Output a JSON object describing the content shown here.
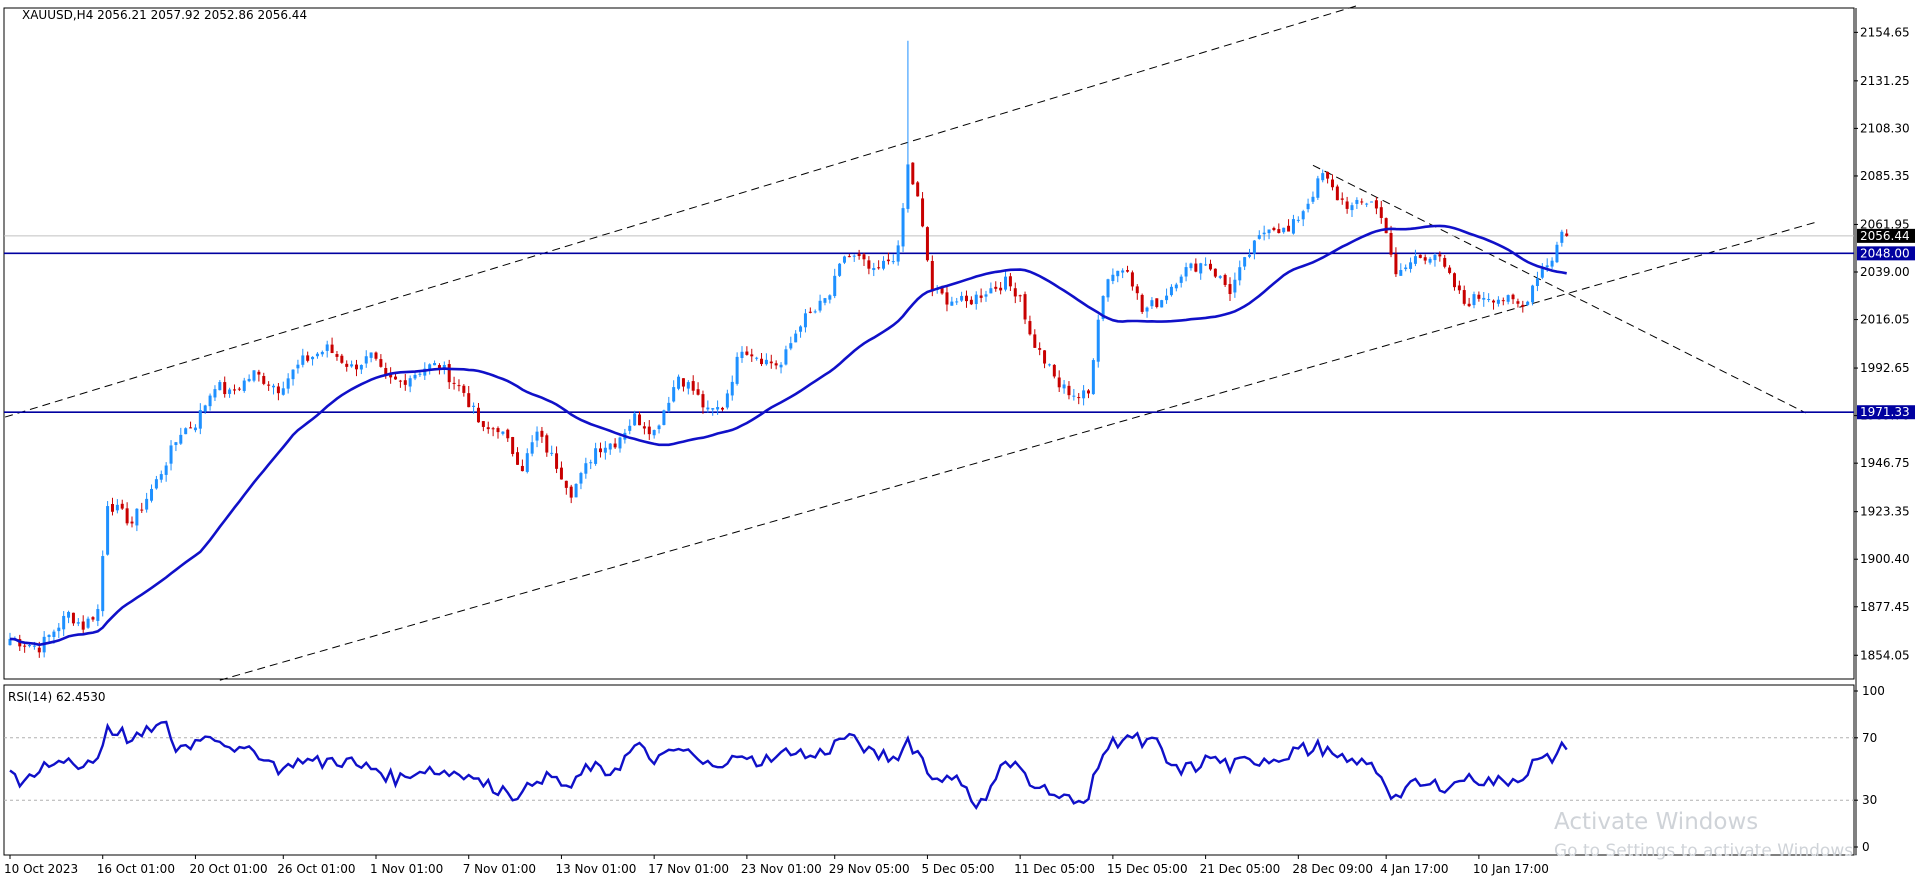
{
  "chart_data": {
    "type": "candlestick",
    "symbol_header": "XAUUSD,H4  2056.21 2057.92 2052.86 2056.44",
    "colors": {
      "up": "#1e90ff",
      "down": "#c80000",
      "ma": "#1010c8",
      "rsi": "#1010c8",
      "hline": "#0000a0"
    },
    "price_axis": {
      "ylim": [
        1842.6,
        2166.4
      ],
      "ticks": [
        "2154.65",
        "2131.25",
        "2108.30",
        "2085.35",
        "2061.95",
        "2039.00",
        "2016.05",
        "1992.65",
        "1969.70",
        "1946.75",
        "1923.35",
        "1900.40",
        "1877.45",
        "1854.05"
      ]
    },
    "x_labels": [
      "10 Oct 2023",
      "16 Oct 01:00",
      "20 Oct 01:00",
      "26 Oct 01:00",
      "1 Nov 01:00",
      "7 Nov 01:00",
      "13 Nov 01:00",
      "17 Nov 01:00",
      "23 Nov 01:00",
      "29 Nov 05:00",
      "5 Dec 05:00",
      "11 Dec 05:00",
      "15 Dec 05:00",
      "21 Dec 05:00",
      "28 Dec 09:00",
      "4 Jan 17:00",
      "10 Jan 17:00"
    ],
    "candles": {
      "count": 320,
      "anchors": [
        [
          0,
          1862
        ],
        [
          6,
          1858
        ],
        [
          12,
          1874
        ],
        [
          15,
          1868
        ],
        [
          18,
          1876
        ],
        [
          20,
          1928
        ],
        [
          25,
          1918
        ],
        [
          30,
          1938
        ],
        [
          35,
          1962
        ],
        [
          38,
          1966
        ],
        [
          42,
          1985
        ],
        [
          45,
          1980
        ],
        [
          50,
          1990
        ],
        [
          55,
          1983
        ],
        [
          60,
          1996
        ],
        [
          65,
          2002
        ],
        [
          70,
          1993
        ],
        [
          74,
          1998
        ],
        [
          77,
          1987
        ],
        [
          80,
          1986
        ],
        [
          85,
          1993
        ],
        [
          88,
          1994
        ],
        [
          93,
          1981
        ],
        [
          97,
          1962
        ],
        [
          100,
          1964
        ],
        [
          105,
          1945
        ],
        [
          108,
          1961
        ],
        [
          112,
          1946
        ],
        [
          115,
          1933
        ],
        [
          117,
          1940
        ],
        [
          120,
          1954
        ],
        [
          124,
          1957
        ],
        [
          128,
          1969
        ],
        [
          132,
          1962
        ],
        [
          137,
          1989
        ],
        [
          140,
          1982
        ],
        [
          143,
          1971
        ],
        [
          146,
          1974
        ],
        [
          150,
          2003
        ],
        [
          155,
          1996
        ],
        [
          158,
          1994
        ],
        [
          162,
          2015
        ],
        [
          165,
          2020
        ],
        [
          168,
          2028
        ],
        [
          171,
          2047
        ],
        [
          174,
          2045
        ],
        [
          177,
          2038
        ],
        [
          182,
          2049
        ],
        [
          184,
          2090
        ],
        [
          186,
          2074
        ],
        [
          189,
          2030
        ],
        [
          192,
          2026
        ],
        [
          196,
          2024
        ],
        [
          200,
          2030
        ],
        [
          204,
          2034
        ],
        [
          207,
          2028
        ],
        [
          209,
          2008
        ],
        [
          212,
          1996
        ],
        [
          215,
          1984
        ],
        [
          219,
          1979
        ],
        [
          221,
          1980
        ],
        [
          223,
          2018
        ],
        [
          225,
          2037
        ],
        [
          229,
          2042
        ],
        [
          232,
          2020
        ],
        [
          236,
          2026
        ],
        [
          240,
          2039
        ],
        [
          245,
          2044
        ],
        [
          250,
          2030
        ],
        [
          254,
          2048
        ],
        [
          258,
          2062
        ],
        [
          262,
          2058
        ],
        [
          266,
          2073
        ],
        [
          269,
          2086
        ],
        [
          272,
          2075
        ],
        [
          275,
          2070
        ],
        [
          279,
          2074
        ],
        [
          282,
          2060
        ],
        [
          284,
          2036
        ],
        [
          288,
          2046
        ],
        [
          292,
          2048
        ],
        [
          295,
          2036
        ],
        [
          298,
          2024
        ],
        [
          302,
          2028
        ],
        [
          306,
          2026
        ],
        [
          310,
          2022
        ],
        [
          313,
          2038
        ],
        [
          316,
          2046
        ],
        [
          318,
          2058
        ],
        [
          319,
          2056.44
        ]
      ]
    },
    "channel_lines": [
      {
        "from": {
          "i": -1,
          "price": 1969.0
        },
        "to": {
          "i": 276,
          "price": 2167.5
        }
      },
      {
        "from": {
          "i": 43,
          "price": 1842.0
        },
        "to": {
          "i": 370,
          "price": 2063.0
        }
      },
      {
        "from": {
          "i": 267,
          "price": 2090.5
        },
        "to": {
          "i": 368,
          "price": 1971.0
        }
      }
    ],
    "horizontal_levels": [
      {
        "price": 2048.0,
        "label": "2048.00"
      },
      {
        "price": 1971.33,
        "label": "1971.33"
      }
    ],
    "current_price": {
      "price": 2056.44,
      "label": "2056.44"
    },
    "indicator": {
      "title": "RSI(14) 62.4530",
      "ylim": [
        0,
        100
      ],
      "ticks": [
        "100",
        "70",
        "30",
        "0"
      ],
      "levels": [
        70,
        30
      ]
    }
  },
  "watermark": {
    "line1": "Activate Windows",
    "line2": "Go to Settings to activate Windows."
  }
}
